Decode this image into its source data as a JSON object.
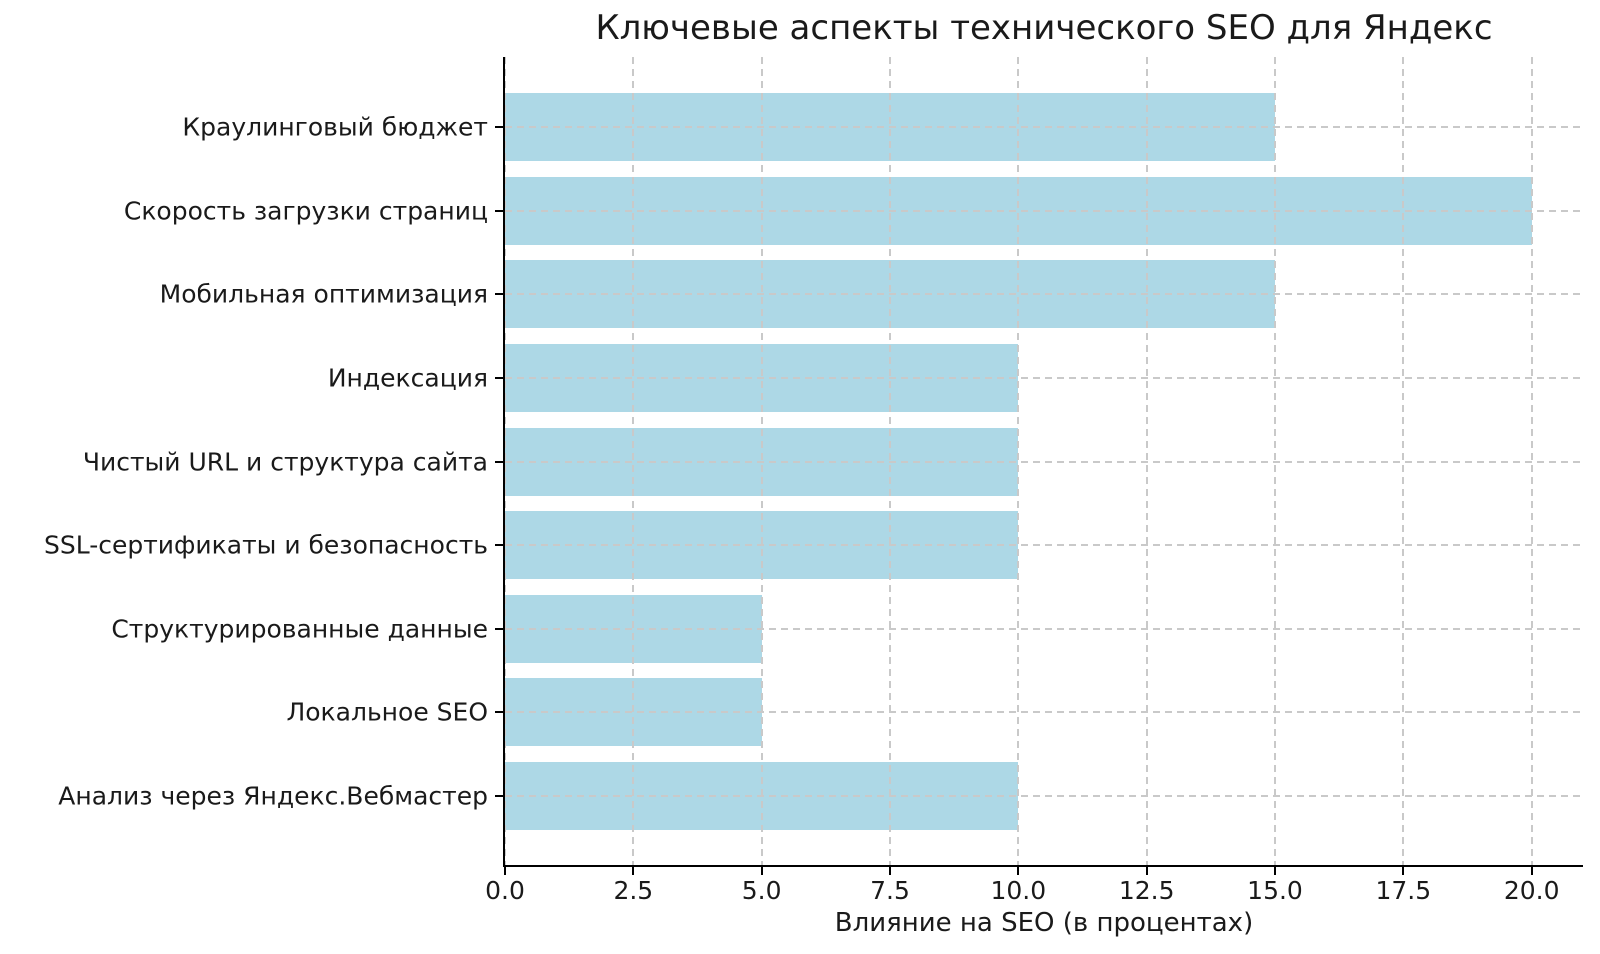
{
  "figure": {
    "background": "#ffffff"
  },
  "chart_data": {
    "type": "bar",
    "orientation": "horizontal",
    "title": "Ключевые аспекты технического SEO для Яндекс",
    "xlabel": "Влияние на SEO (в процентах)",
    "ylabel": "",
    "categories": [
      "Краулинговый бюджет",
      "Скорость загрузки страниц",
      "Мобильная оптимизация",
      "Индексация",
      "Чистый URL и структура сайта",
      "SSL-сертификаты и безопасность",
      "Структурированные данные",
      "Локальное SEO",
      "Анализ через Яндекс.Вебмастер"
    ],
    "values": [
      15,
      20,
      15,
      10,
      10,
      10,
      5,
      5,
      10
    ],
    "xticks": [
      0,
      2.5,
      5,
      7.5,
      10,
      12.5,
      15,
      17.5,
      20
    ],
    "xtick_labels": [
      "0.0",
      "2.5",
      "5.0",
      "7.5",
      "10.0",
      "12.5",
      "15.0",
      "17.5",
      "20.0"
    ],
    "xlim": [
      0,
      21
    ],
    "bar_color": "#ADD8E6",
    "grid": true,
    "grid_line_style": "dashed",
    "grid_color": "#c9c9c9",
    "legend": false
  }
}
